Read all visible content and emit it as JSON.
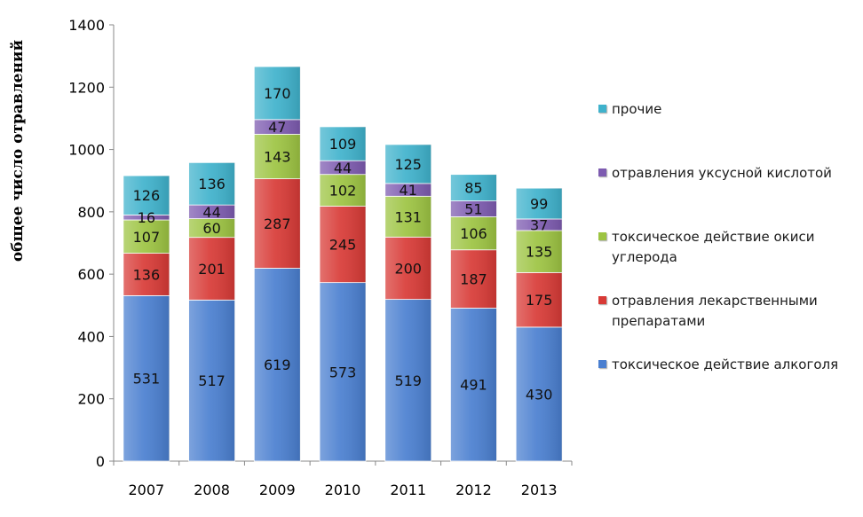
{
  "chart_data": {
    "type": "bar",
    "stacked": true,
    "title": "",
    "xlabel": "",
    "ylabel": "общее число отравлений",
    "ylim": [
      0,
      1400
    ],
    "yticks": [
      0,
      200,
      400,
      600,
      800,
      1000,
      1200,
      1400
    ],
    "categories": [
      "2007",
      "2008",
      "2009",
      "2010",
      "2011",
      "2012",
      "2013"
    ],
    "series": [
      {
        "name": "токсическое действие алкоголя",
        "color": "#4a7fd0",
        "values": [
          531,
          517,
          619,
          573,
          519,
          491,
          430
        ]
      },
      {
        "name": "отравления лекарственными препаратами",
        "color": "#d83a36",
        "values": [
          136,
          201,
          287,
          245,
          200,
          187,
          175
        ]
      },
      {
        "name": "токсическое действие окиси углерода",
        "color": "#9dc442",
        "values": [
          107,
          60,
          143,
          102,
          131,
          106,
          135
        ]
      },
      {
        "name": "отравления уксусной кислотой",
        "color": "#7d5bb0",
        "values": [
          16,
          44,
          47,
          44,
          41,
          51,
          37
        ]
      },
      {
        "name": "прочие",
        "color": "#3fb2cc",
        "values": [
          126,
          136,
          170,
          109,
          125,
          85,
          99
        ]
      }
    ],
    "legend_position": "right",
    "grid": false
  }
}
